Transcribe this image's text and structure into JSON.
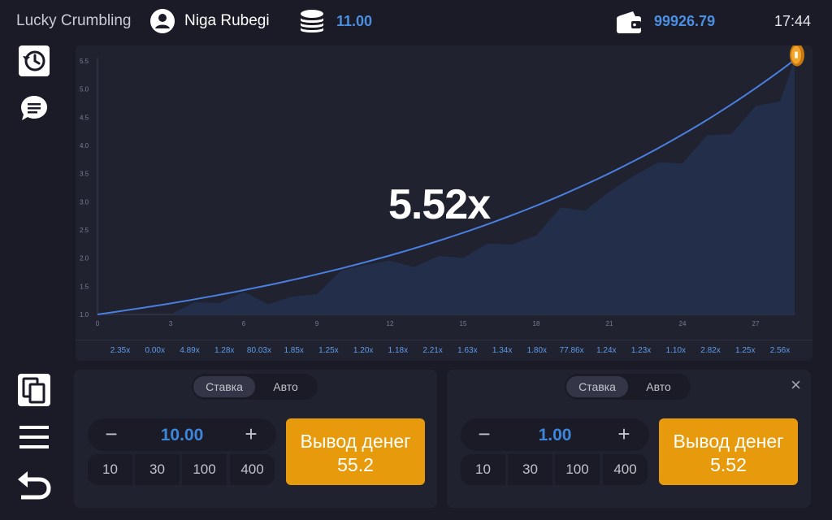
{
  "header": {
    "app_title": "Lucky Crumbling",
    "username": "Niga Rubegi",
    "coins": "11.00",
    "wallet": "99926.79",
    "time": "17:44"
  },
  "icons": {
    "user": "user-circle-icon",
    "coins": "coin-stack-icon",
    "wallet": "wallet-icon",
    "history": "history-icon",
    "chat": "chat-icon",
    "copy": "copy-icon",
    "menu": "menu-icon",
    "back": "back-icon",
    "coin_marker": "coin-icon"
  },
  "colors": {
    "accent_blue": "#4c8ee0",
    "cashout_orange": "#e79a0c",
    "background": "#1a1b27",
    "panel": "#202230",
    "curve": "#4a7fe0"
  },
  "game": {
    "multiplier": "5.52x"
  },
  "chart_data": {
    "type": "area",
    "x_ticks": [
      "0",
      "3",
      "6",
      "9",
      "12",
      "15",
      "18",
      "21",
      "24",
      "27"
    ],
    "y_ticks": [
      "1.0",
      "1.5",
      "2.0",
      "2.5",
      "3.0",
      "3.5",
      "4.0",
      "4.5",
      "5.0",
      "5.5"
    ],
    "xlim": [
      0,
      28.6
    ],
    "ylim": [
      1.0,
      5.5
    ],
    "curve": {
      "start": 1.0,
      "end": 5.52,
      "x_end": 28.6
    },
    "area_series": {
      "x": [
        0,
        3,
        4,
        5,
        6,
        7,
        8,
        9,
        10,
        11,
        12,
        13,
        14,
        15,
        16,
        17,
        18,
        19,
        20,
        21,
        22,
        23,
        24,
        25,
        26,
        27,
        28,
        28.6
      ],
      "y": [
        1.0,
        1.0,
        1.22,
        1.2,
        1.4,
        1.18,
        1.32,
        1.36,
        1.78,
        1.88,
        1.96,
        1.84,
        2.04,
        2.0,
        2.26,
        2.24,
        2.4,
        2.9,
        2.84,
        3.18,
        3.46,
        3.7,
        3.68,
        4.18,
        4.2,
        4.7,
        4.78,
        5.52
      ]
    }
  },
  "history": [
    "2.35x",
    "0.00x",
    "4.89x",
    "1.28x",
    "80.03x",
    "1.85x",
    "1.25x",
    "1.20x",
    "1.18x",
    "2.21x",
    "1.63x",
    "1.34x",
    "1.80x",
    "77.86x",
    "1.24x",
    "1.23x",
    "1.10x",
    "2.82x",
    "1.25x",
    "2.56x"
  ],
  "bets": [
    {
      "tabs": [
        "Ставка",
        "Авто"
      ],
      "amount": "10.00",
      "minus": "−",
      "plus": "+",
      "quick_amounts": [
        "10",
        "30",
        "100",
        "400"
      ],
      "cashout_label": "Вывод денег",
      "cashout_amount": "55.2"
    },
    {
      "tabs": [
        "Ставка",
        "Авто"
      ],
      "amount": "1.00",
      "minus": "−",
      "plus": "+",
      "quick_amounts": [
        "10",
        "30",
        "100",
        "400"
      ],
      "cashout_label": "Вывод денег",
      "cashout_amount": "5.52",
      "close": "×"
    }
  ]
}
